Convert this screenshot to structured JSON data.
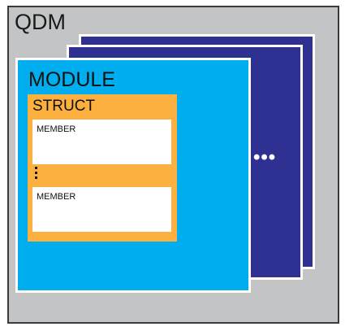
{
  "qdm": {
    "label": "QDM"
  },
  "module": {
    "label": "MODULE",
    "more": "•••"
  },
  "struct": {
    "label": "STRUCT"
  },
  "members": [
    {
      "label": "MEMBER"
    },
    {
      "label": "MEMBER"
    }
  ],
  "colors": {
    "qdm_background": "#c3c4c6",
    "module_background": "#00aeef",
    "module_stack_background": "#2e3192",
    "struct_background": "#fbb040",
    "member_background": "#ffffff"
  }
}
